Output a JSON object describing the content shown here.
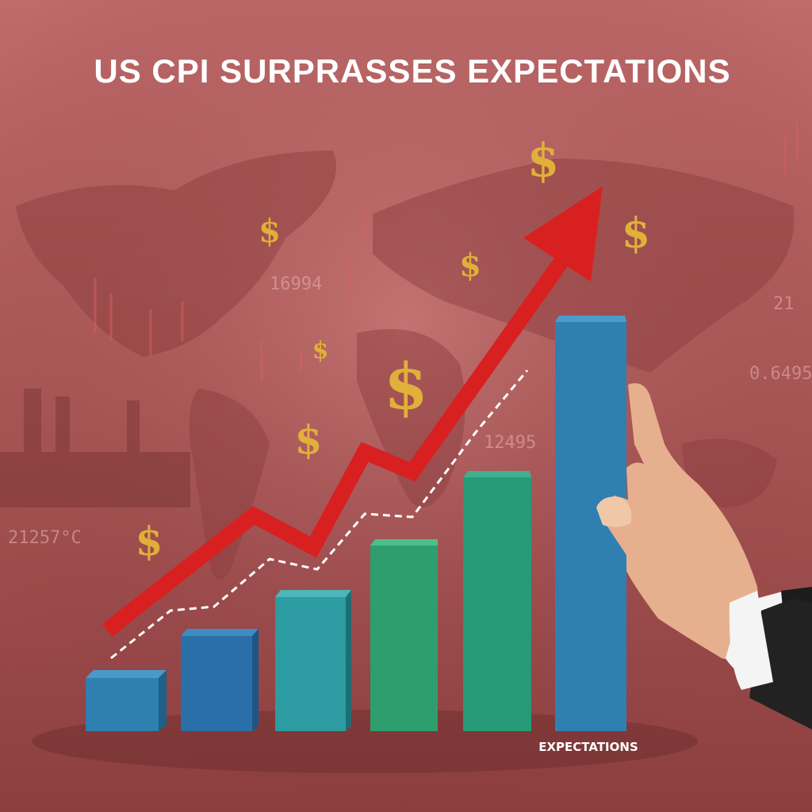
{
  "header": {
    "title": "US CPI SURPRASSES EXPECTATIONS"
  },
  "bar_label": "EXPECTATIONS",
  "dollar_symbol": "$",
  "background_numbers": [
    "16994",
    "21257°C",
    "12495",
    "0.6495",
    "21"
  ]
}
